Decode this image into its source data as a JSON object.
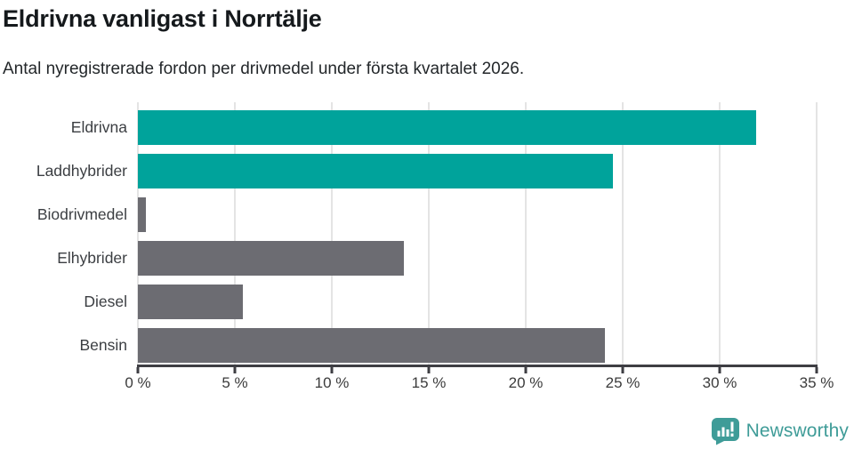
{
  "header": {
    "title": "Eldrivna vanligast i Norrtälje",
    "subtitle": "Antal nyregistrerade fordon per drivmedel under första kvartalet 2026."
  },
  "colors": {
    "highlight_bar": "#00a39b",
    "default_bar": "#6c6c72",
    "gridline": "#e4e4e4",
    "axis": "#3e3e43",
    "brand": "#3f9c98"
  },
  "chart_data": {
    "type": "bar",
    "orientation": "horizontal",
    "title": "Eldrivna vanligast i Norrtälje",
    "subtitle": "Antal nyregistrerade fordon per drivmedel under första kvartalet 2026.",
    "categories": [
      "Eldrivna",
      "Laddhybrider",
      "Biodrivmedel",
      "Elhybrider",
      "Diesel",
      "Bensin"
    ],
    "values": [
      31.9,
      24.5,
      0.4,
      13.7,
      5.4,
      24.1
    ],
    "bar_colors": [
      "#00a39b",
      "#00a39b",
      "#6c6c72",
      "#6c6c72",
      "#6c6c72",
      "#6c6c72"
    ],
    "unit": "%",
    "xlabel": "",
    "ylabel": "",
    "xlim": [
      0,
      35
    ],
    "x_tick_values": [
      0,
      5,
      10,
      15,
      20,
      25,
      30,
      35
    ],
    "x_tick_labels": [
      "0 %",
      "5 %",
      "10 %",
      "15 %",
      "20 %",
      "25 %",
      "30 %",
      "35 %"
    ],
    "grid": true,
    "legend": false
  },
  "footer": {
    "brand_name": "Newsworthy"
  }
}
